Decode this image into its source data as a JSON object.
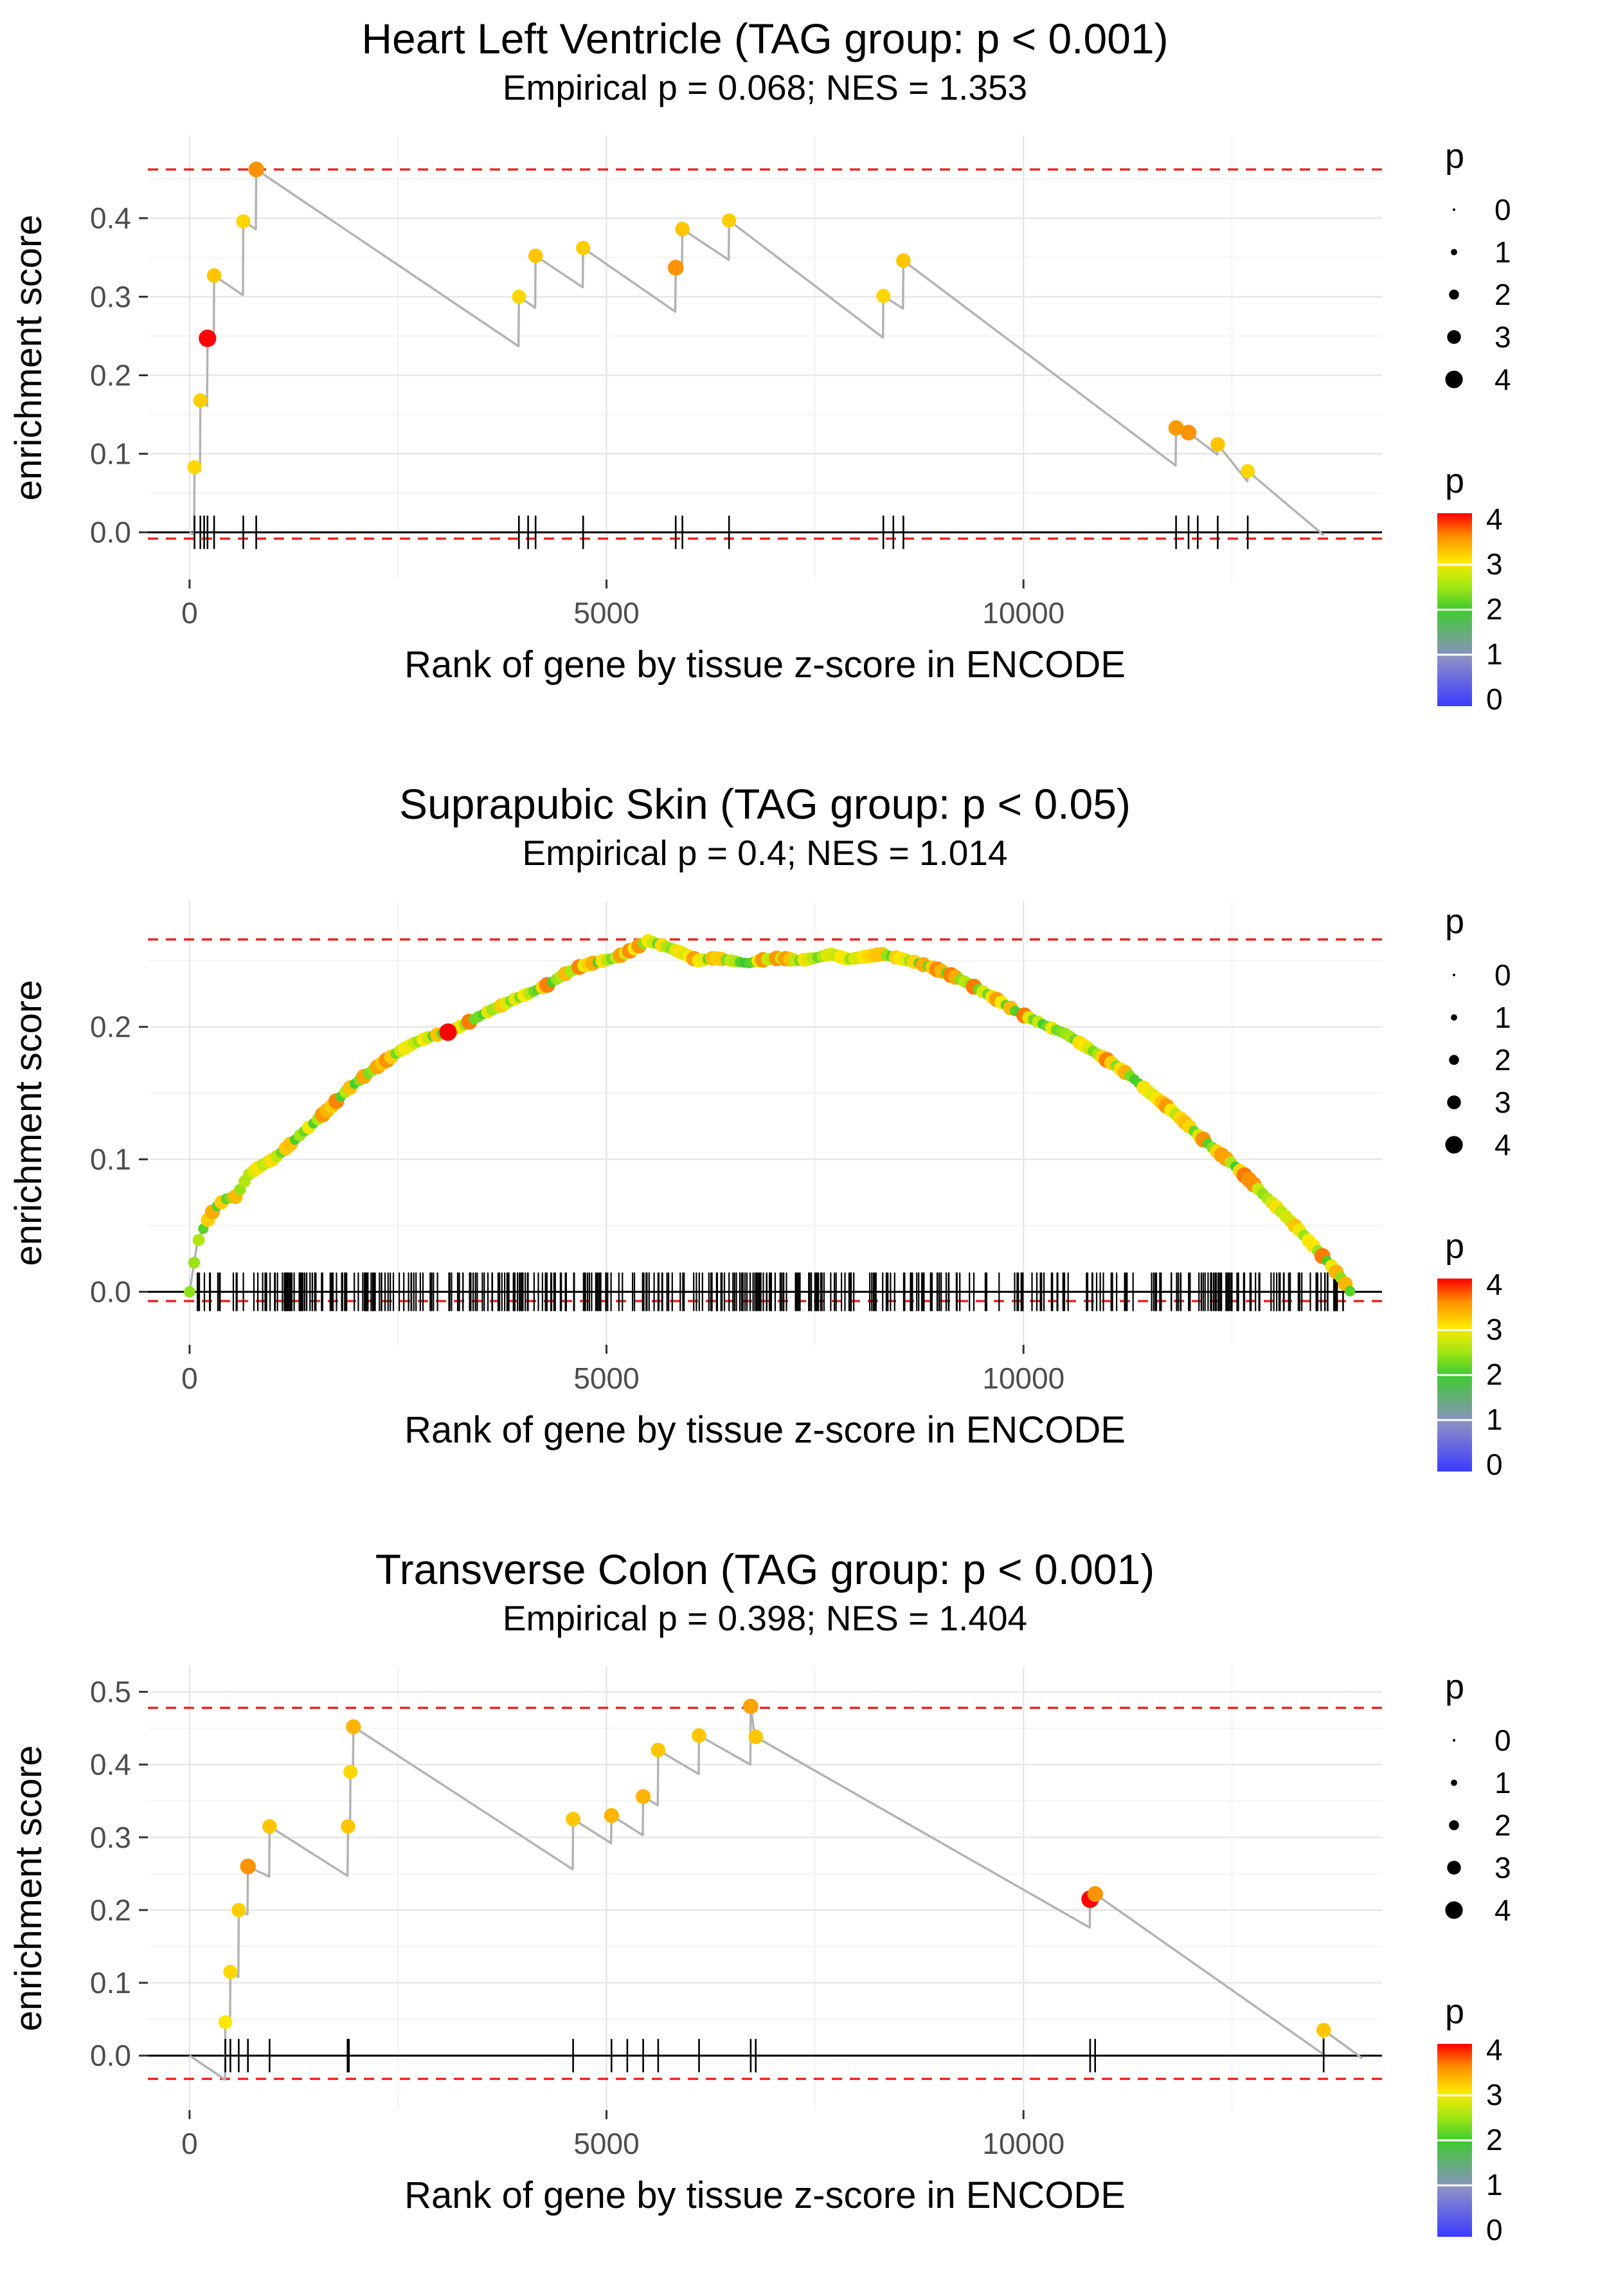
{
  "figure": {
    "background": "#ffffff"
  },
  "legend": {
    "size_title": "p",
    "size_values": [
      0,
      1,
      2,
      3,
      4
    ],
    "color_title": "p",
    "color_ticks": [
      4,
      3,
      2,
      1,
      0
    ],
    "color_domain": [
      0,
      4
    ],
    "gradient_stops": [
      {
        "t": 0.0,
        "c": "#3b3bff"
      },
      {
        "t": 0.25,
        "c": "#8d8fc6"
      },
      {
        "t": 0.5,
        "c": "#3ecb2f"
      },
      {
        "t": 0.62,
        "c": "#a2e613"
      },
      {
        "t": 0.75,
        "c": "#ffe800"
      },
      {
        "t": 0.88,
        "c": "#ff8f00"
      },
      {
        "t": 1.0,
        "c": "#ff0000"
      }
    ]
  },
  "style": {
    "dashed_line_color": "#ee2222",
    "curve_color": "#b3b3b3",
    "zero_line_color": "#000000",
    "grid_major_color": "#e7e7e7",
    "grid_minor_color": "#f3f3f3"
  },
  "chart_data": [
    {
      "type": "line",
      "title": "Heart Left Ventricle (TAG group: p < 0.001)",
      "subtitle": "Empirical p = 0.068; NES = 1.353",
      "xlabel": "Rank of gene by tissue z-score in ENCODE",
      "ylabel": "enrichment score",
      "xlim": [
        -500,
        14300
      ],
      "ylim": [
        -0.06,
        0.505
      ],
      "xticks": [
        0,
        5000,
        10000
      ],
      "yticks": [
        0.0,
        0.1,
        0.2,
        0.3,
        0.4
      ],
      "hline_top": 0.462,
      "hline_bottom": -0.008,
      "rug_half": 26,
      "curve": [
        [
          0,
          0
        ],
        [
          55,
          -0.003
        ],
        [
          60,
          0.083
        ],
        [
          125,
          0.078
        ],
        [
          130,
          0.168
        ],
        [
          210,
          0.161
        ],
        [
          215,
          0.247
        ],
        [
          290,
          0.24
        ],
        [
          295,
          0.327
        ],
        [
          640,
          0.302
        ],
        [
          645,
          0.396
        ],
        [
          795,
          0.386
        ],
        [
          800,
          0.462
        ],
        [
          3945,
          0.237
        ],
        [
          3950,
          0.3
        ],
        [
          4145,
          0.286
        ],
        [
          4150,
          0.352
        ],
        [
          4715,
          0.312
        ],
        [
          4720,
          0.362
        ],
        [
          5825,
          0.281
        ],
        [
          5830,
          0.337
        ],
        [
          5905,
          0.332
        ],
        [
          5910,
          0.386
        ],
        [
          6465,
          0.347
        ],
        [
          6470,
          0.397
        ],
        [
          8315,
          0.248
        ],
        [
          8320,
          0.301
        ],
        [
          8555,
          0.285
        ],
        [
          8560,
          0.346
        ],
        [
          11825,
          0.085
        ],
        [
          11830,
          0.133
        ],
        [
          11975,
          0.121
        ],
        [
          11980,
          0.127
        ],
        [
          12325,
          0.099
        ],
        [
          12330,
          0.112
        ],
        [
          12685,
          0.065
        ],
        [
          12690,
          0.078
        ],
        [
          13560,
          0.0
        ],
        [
          13600,
          -0.004
        ]
      ],
      "points": [
        {
          "x": 60,
          "y": 0.083,
          "p": 3.1
        },
        {
          "x": 130,
          "y": 0.168,
          "p": 3.15
        },
        {
          "x": 215,
          "y": 0.247,
          "p": 4.0
        },
        {
          "x": 295,
          "y": 0.327,
          "p": 3.2
        },
        {
          "x": 645,
          "y": 0.396,
          "p": 3.1
        },
        {
          "x": 800,
          "y": 0.462,
          "p": 3.5
        },
        {
          "x": 3950,
          "y": 0.3,
          "p": 3.1
        },
        {
          "x": 4150,
          "y": 0.352,
          "p": 3.2
        },
        {
          "x": 4720,
          "y": 0.362,
          "p": 3.15
        },
        {
          "x": 5830,
          "y": 0.337,
          "p": 3.5
        },
        {
          "x": 5910,
          "y": 0.386,
          "p": 3.2
        },
        {
          "x": 6470,
          "y": 0.397,
          "p": 3.15
        },
        {
          "x": 8320,
          "y": 0.301,
          "p": 3.1
        },
        {
          "x": 8560,
          "y": 0.346,
          "p": 3.2
        },
        {
          "x": 11830,
          "y": 0.133,
          "p": 3.45
        },
        {
          "x": 11980,
          "y": 0.127,
          "p": 3.5
        },
        {
          "x": 12330,
          "y": 0.112,
          "p": 3.2
        },
        {
          "x": 12690,
          "y": 0.078,
          "p": 3.1
        }
      ],
      "rug": [
        60,
        130,
        175,
        215,
        295,
        645,
        800,
        3950,
        4060,
        4150,
        4720,
        5830,
        5910,
        6470,
        8320,
        8440,
        8560,
        11830,
        11980,
        12090,
        12330,
        12690
      ]
    },
    {
      "type": "line",
      "title": "Suprapubic Skin (TAG group: p < 0.05)",
      "subtitle": "Empirical p = 0.4; NES = 1.014",
      "xlabel": "Rank of gene by tissue z-score in ENCODE",
      "ylabel": "enrichment score",
      "xlim": [
        -500,
        14300
      ],
      "ylim": [
        -0.04,
        0.295
      ],
      "xticks": [
        0,
        5000,
        10000
      ],
      "yticks": [
        0.0,
        0.1,
        0.2
      ],
      "hline_top": 0.266,
      "hline_bottom": -0.007,
      "rug_half": 30,
      "point_spacing": 55,
      "point_p_range": [
        2.0,
        3.6
      ],
      "point_seed": 11,
      "rug_dense": {
        "count": 420,
        "xmin": 60,
        "xmax": 13920,
        "seed": 5
      },
      "curve": [
        [
          0,
          0
        ],
        [
          90,
          0.036
        ],
        [
          180,
          0.05
        ],
        [
          300,
          0.063
        ],
        [
          430,
          0.07
        ],
        [
          560,
          0.072
        ],
        [
          700,
          0.088
        ],
        [
          850,
          0.095
        ],
        [
          1000,
          0.1
        ],
        [
          1150,
          0.108
        ],
        [
          1300,
          0.117
        ],
        [
          1500,
          0.128
        ],
        [
          1700,
          0.14
        ],
        [
          1900,
          0.153
        ],
        [
          2100,
          0.163
        ],
        [
          2300,
          0.172
        ],
        [
          2500,
          0.181
        ],
        [
          2700,
          0.188
        ],
        [
          2900,
          0.193
        ],
        [
          3100,
          0.196
        ],
        [
          3300,
          0.202
        ],
        [
          3500,
          0.209
        ],
        [
          3700,
          0.215
        ],
        [
          3900,
          0.221
        ],
        [
          4100,
          0.226
        ],
        [
          4300,
          0.232
        ],
        [
          4500,
          0.24
        ],
        [
          4700,
          0.246
        ],
        [
          4900,
          0.249
        ],
        [
          5100,
          0.252
        ],
        [
          5300,
          0.258
        ],
        [
          5500,
          0.265
        ],
        [
          5700,
          0.261
        ],
        [
          5900,
          0.256
        ],
        [
          6100,
          0.25
        ],
        [
          6300,
          0.252
        ],
        [
          6500,
          0.25
        ],
        [
          6700,
          0.248
        ],
        [
          6900,
          0.251
        ],
        [
          7100,
          0.252
        ],
        [
          7300,
          0.25
        ],
        [
          7500,
          0.252
        ],
        [
          7700,
          0.255
        ],
        [
          7900,
          0.251
        ],
        [
          8100,
          0.253
        ],
        [
          8300,
          0.255
        ],
        [
          8500,
          0.252
        ],
        [
          8700,
          0.249
        ],
        [
          8900,
          0.245
        ],
        [
          9100,
          0.24
        ],
        [
          9300,
          0.234
        ],
        [
          9500,
          0.227
        ],
        [
          9700,
          0.22
        ],
        [
          9900,
          0.212
        ],
        [
          10100,
          0.206
        ],
        [
          10300,
          0.2
        ],
        [
          10500,
          0.195
        ],
        [
          10700,
          0.187
        ],
        [
          10900,
          0.179
        ],
        [
          11100,
          0.171
        ],
        [
          11300,
          0.162
        ],
        [
          11500,
          0.151
        ],
        [
          11700,
          0.141
        ],
        [
          11900,
          0.13
        ],
        [
          12100,
          0.118
        ],
        [
          12300,
          0.107
        ],
        [
          12500,
          0.097
        ],
        [
          12700,
          0.085
        ],
        [
          12900,
          0.072
        ],
        [
          13100,
          0.06
        ],
        [
          13300,
          0.047
        ],
        [
          13500,
          0.033
        ],
        [
          13700,
          0.019
        ],
        [
          13850,
          0.007
        ],
        [
          13920,
          0
        ]
      ],
      "points": [
        {
          "x": 3100,
          "y": 0.196,
          "p": 4.0
        }
      ]
    },
    {
      "type": "line",
      "title": "Transverse Colon (TAG group: p < 0.001)",
      "subtitle": "Empirical p = 0.398; NES = 1.404",
      "xlabel": "Rank of gene by tissue z-score in ENCODE",
      "ylabel": "enrichment score",
      "xlim": [
        -500,
        14300
      ],
      "ylim": [
        -0.075,
        0.535
      ],
      "xticks": [
        0,
        5000,
        10000
      ],
      "yticks": [
        0.0,
        0.1,
        0.2,
        0.3,
        0.4,
        0.5
      ],
      "hline_top": 0.478,
      "hline_bottom": -0.032,
      "rug_half": 26,
      "curve": [
        [
          0,
          0
        ],
        [
          425,
          -0.033
        ],
        [
          430,
          0.046
        ],
        [
          485,
          0.041
        ],
        [
          490,
          0.115
        ],
        [
          585,
          0.108
        ],
        [
          590,
          0.2
        ],
        [
          695,
          0.194
        ],
        [
          700,
          0.26
        ],
        [
          955,
          0.246
        ],
        [
          960,
          0.315
        ],
        [
          1895,
          0.247
        ],
        [
          1900,
          0.315
        ],
        [
          1925,
          0.312
        ],
        [
          1930,
          0.39
        ],
        [
          1960,
          0.387
        ],
        [
          1965,
          0.452
        ],
        [
          4595,
          0.256
        ],
        [
          4600,
          0.325
        ],
        [
          5055,
          0.292
        ],
        [
          5060,
          0.33
        ],
        [
          5435,
          0.303
        ],
        [
          5440,
          0.356
        ],
        [
          5615,
          0.344
        ],
        [
          5620,
          0.42
        ],
        [
          6105,
          0.387
        ],
        [
          6110,
          0.44
        ],
        [
          6725,
          0.4
        ],
        [
          6730,
          0.48
        ],
        [
          6785,
          0.432
        ],
        [
          6790,
          0.438
        ],
        [
          10795,
          0.176
        ],
        [
          10800,
          0.215
        ],
        [
          10855,
          0.211
        ],
        [
          10860,
          0.222
        ],
        [
          13595,
          0.002
        ],
        [
          13600,
          0.035
        ],
        [
          14020,
          0.0
        ],
        [
          14060,
          -0.004
        ]
      ],
      "points": [
        {
          "x": 430,
          "y": 0.046,
          "p": 3.0
        },
        {
          "x": 490,
          "y": 0.115,
          "p": 3.1
        },
        {
          "x": 590,
          "y": 0.2,
          "p": 3.15
        },
        {
          "x": 700,
          "y": 0.26,
          "p": 3.5
        },
        {
          "x": 960,
          "y": 0.315,
          "p": 3.2
        },
        {
          "x": 1900,
          "y": 0.315,
          "p": 3.2
        },
        {
          "x": 1930,
          "y": 0.39,
          "p": 3.1
        },
        {
          "x": 1965,
          "y": 0.452,
          "p": 3.3
        },
        {
          "x": 4600,
          "y": 0.325,
          "p": 3.2
        },
        {
          "x": 5060,
          "y": 0.33,
          "p": 3.3
        },
        {
          "x": 5440,
          "y": 0.356,
          "p": 3.3
        },
        {
          "x": 5620,
          "y": 0.42,
          "p": 3.2
        },
        {
          "x": 6110,
          "y": 0.44,
          "p": 3.2
        },
        {
          "x": 6730,
          "y": 0.48,
          "p": 3.4
        },
        {
          "x": 6790,
          "y": 0.438,
          "p": 3.2
        },
        {
          "x": 10800,
          "y": 0.215,
          "p": 4.0
        },
        {
          "x": 10860,
          "y": 0.222,
          "p": 3.5
        },
        {
          "x": 13600,
          "y": 0.035,
          "p": 3.2
        }
      ],
      "rug": [
        430,
        490,
        590,
        700,
        960,
        1895,
        1903,
        1911,
        4600,
        5060,
        5250,
        5440,
        5620,
        6110,
        6730,
        6790,
        10800,
        10860,
        13600
      ]
    }
  ]
}
